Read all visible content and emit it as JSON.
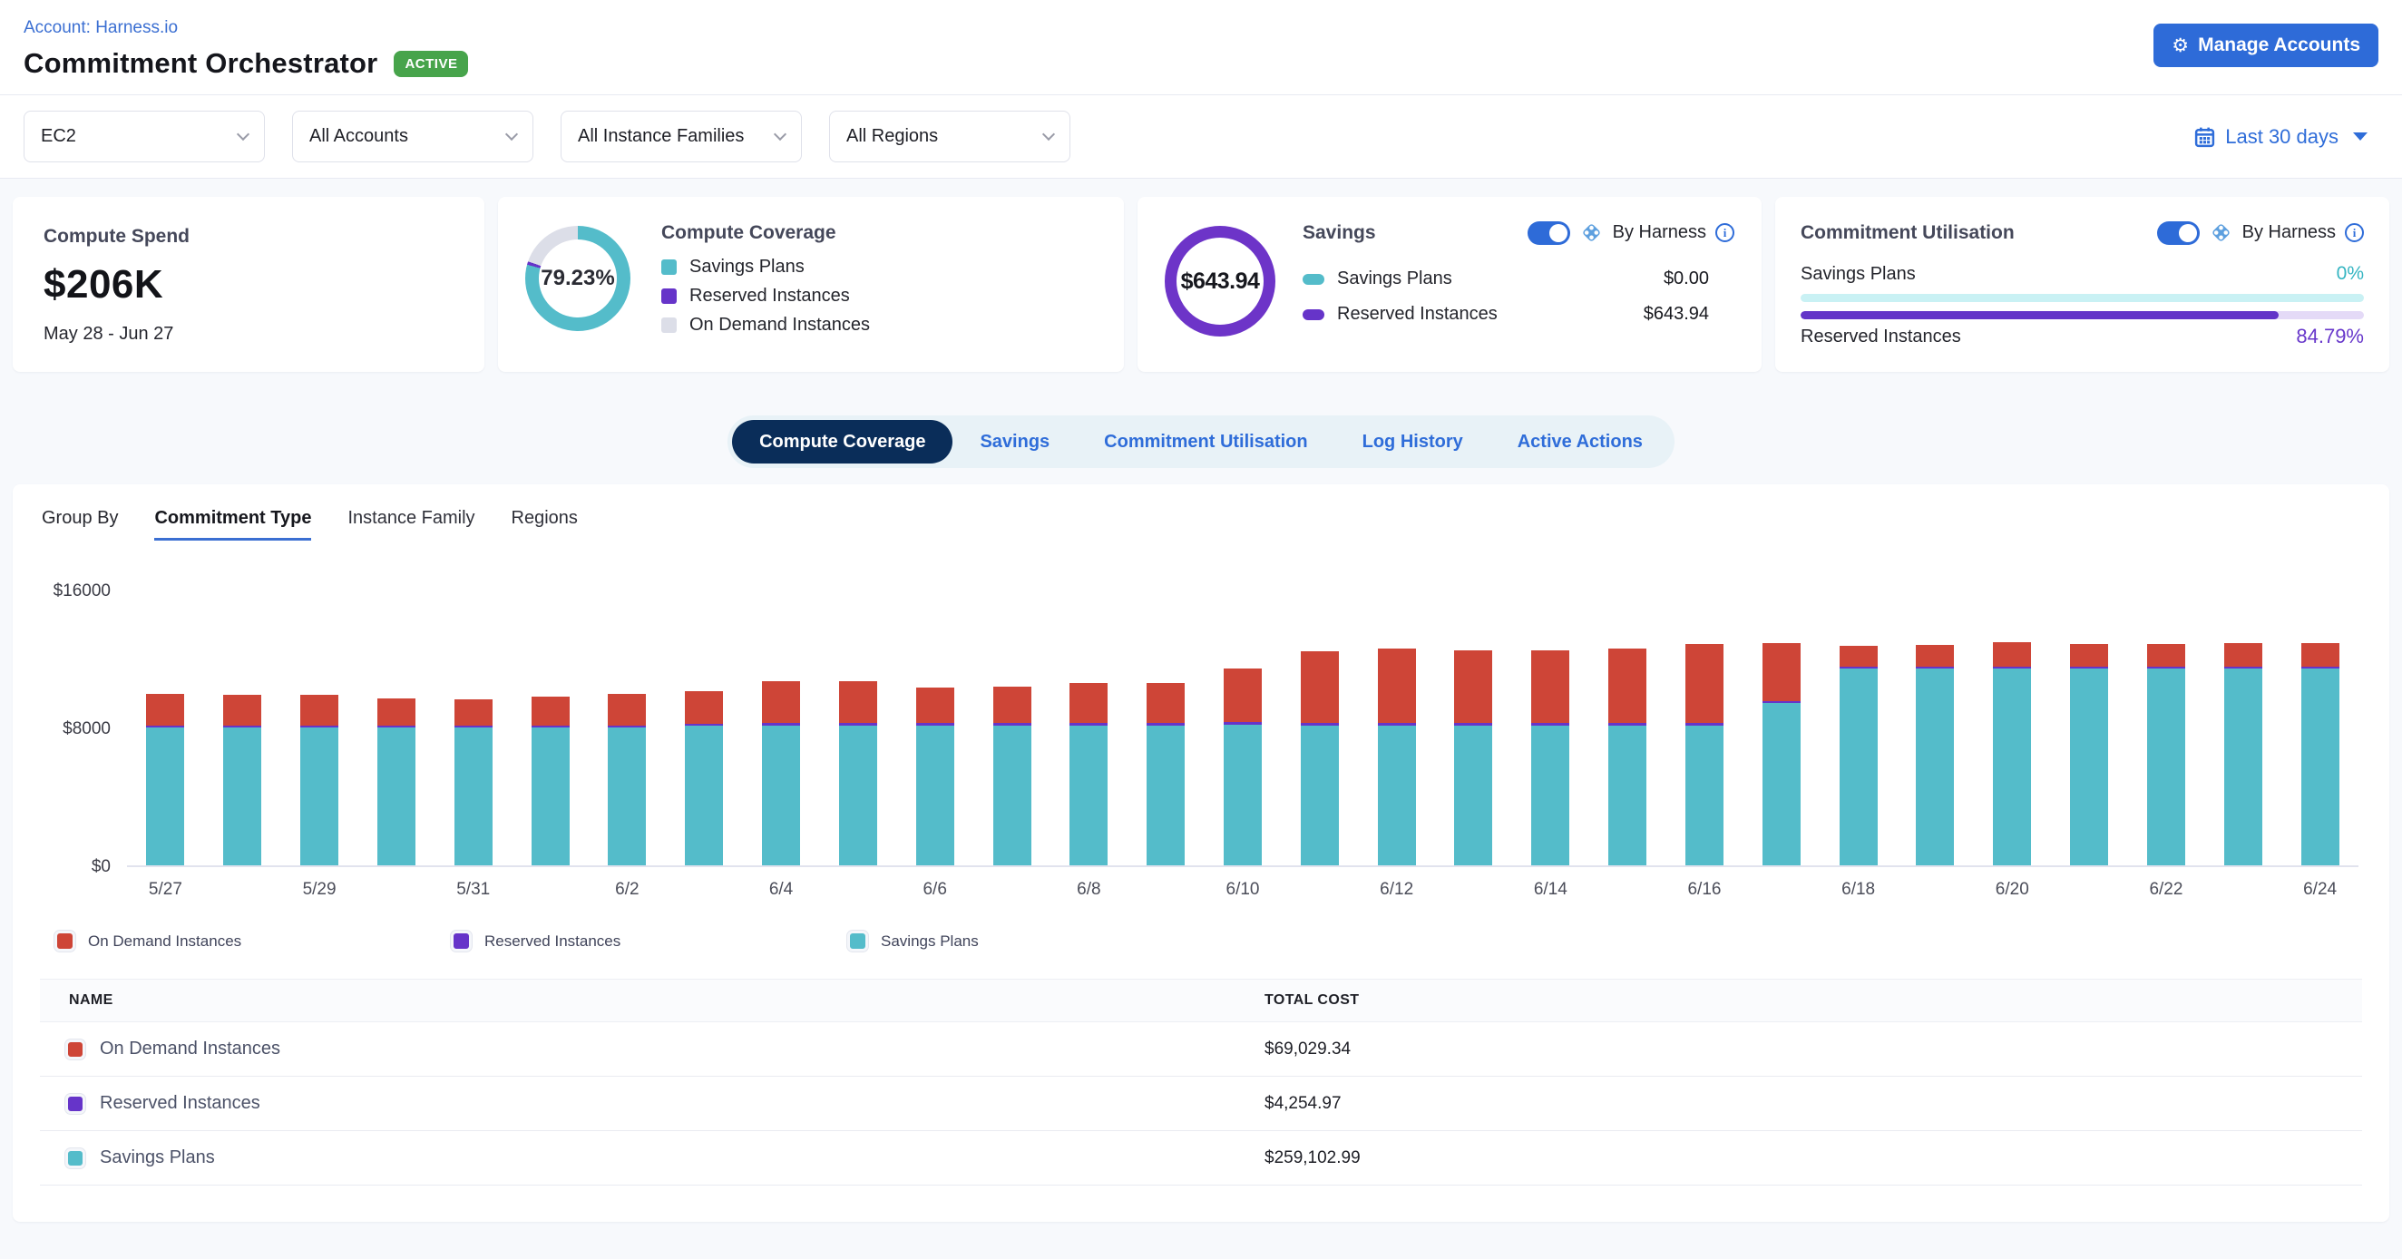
{
  "header": {
    "account_link": "Account: Harness.io",
    "title": "Commitment Orchestrator",
    "status_badge": "ACTIVE",
    "manage_accounts_label": "Manage Accounts"
  },
  "filters": {
    "dropdowns": [
      "EC2",
      "All Accounts",
      "All Instance Families",
      "All Regions"
    ],
    "date_range": "Last 30 days"
  },
  "cards": {
    "compute_spend": {
      "title": "Compute Spend",
      "value": "$206K",
      "date_range": "May 28 - Jun 27"
    },
    "compute_coverage": {
      "title": "Compute Coverage",
      "percent": "79.23%",
      "percent_value": 79.23,
      "legend": [
        {
          "label": "Savings Plans",
          "color": "#54BCCA"
        },
        {
          "label": "Reserved Instances",
          "color": "#6634C9"
        },
        {
          "label": "On Demand Instances",
          "color": "#DCDEE8"
        }
      ]
    },
    "savings": {
      "title": "Savings",
      "total": "$643.94",
      "by_harness_label": "By Harness",
      "rows": [
        {
          "label": "Savings Plans",
          "value": "$0.00",
          "color": "#54BCCA"
        },
        {
          "label": "Reserved Instances",
          "value": "$643.94",
          "color": "#6634C9"
        }
      ]
    },
    "commitment_utilisation": {
      "title": "Commitment Utilisation",
      "by_harness_label": "By Harness",
      "rows": [
        {
          "label": "Savings Plans",
          "percent": "0%",
          "percent_value": 0,
          "fill_color": "#35B5C2",
          "track_color": "#C9F1F4"
        },
        {
          "label": "Reserved Instances",
          "percent": "84.79%",
          "percent_value": 84.79,
          "fill_color": "#6335C8",
          "track_color": "#E4DAF7"
        }
      ]
    }
  },
  "tabs": [
    {
      "label": "Compute Coverage",
      "active": true
    },
    {
      "label": "Savings",
      "active": false
    },
    {
      "label": "Commitment Utilisation",
      "active": false
    },
    {
      "label": "Log History",
      "active": false
    },
    {
      "label": "Active Actions",
      "active": false
    }
  ],
  "group_by": {
    "label": "Group By",
    "options": [
      {
        "label": "Commitment Type",
        "active": true
      },
      {
        "label": "Instance Family",
        "active": false
      },
      {
        "label": "Regions",
        "active": false
      }
    ]
  },
  "chart_data": {
    "type": "bar",
    "stacked": true,
    "x": [
      "5/27",
      "5/28",
      "5/29",
      "5/30",
      "5/31",
      "6/1",
      "6/2",
      "6/3",
      "6/4",
      "6/5",
      "6/6",
      "6/7",
      "6/8",
      "6/9",
      "6/10",
      "6/11",
      "6/12",
      "6/13",
      "6/14",
      "6/15",
      "6/16",
      "6/17",
      "6/18",
      "6/19",
      "6/20",
      "6/21",
      "6/22",
      "6/23",
      "6/24"
    ],
    "x_label_every": 2,
    "series": [
      {
        "name": "Savings Plans",
        "color": "#54BCCA",
        "values": [
          8000,
          8000,
          8000,
          8000,
          8000,
          8000,
          8000,
          8100,
          8100,
          8100,
          8100,
          8100,
          8100,
          8100,
          8150,
          8100,
          8100,
          8100,
          8100,
          8100,
          8100,
          9400,
          11400,
          11400,
          11400,
          11400,
          11400,
          11400,
          11400
        ]
      },
      {
        "name": "Reserved Instances",
        "color": "#6634C9",
        "values": [
          120,
          120,
          120,
          120,
          120,
          120,
          120,
          120,
          150,
          150,
          150,
          150,
          150,
          150,
          150,
          150,
          150,
          150,
          150,
          150,
          150,
          150,
          150,
          150,
          150,
          150,
          150,
          150,
          150
        ]
      },
      {
        "name": "On Demand Instances",
        "color": "#CE4537",
        "values": [
          1830,
          1750,
          1750,
          1580,
          1530,
          1690,
          1820,
          1880,
          2420,
          2420,
          2060,
          2130,
          2340,
          2340,
          3120,
          4170,
          4350,
          4250,
          4250,
          4350,
          4590,
          3340,
          1190,
          1240,
          1400,
          1270,
          1290,
          1340,
          1340
        ]
      }
    ],
    "ylim": [
      0,
      16000
    ],
    "yticks": [
      {
        "label": "$0",
        "value": 0
      },
      {
        "label": "$8000",
        "value": 8000
      },
      {
        "label": "$16000",
        "value": 16000
      }
    ],
    "legend_position": "bottom",
    "grid": false
  },
  "chart_legend": [
    {
      "label": "On Demand Instances",
      "color": "#CE4537"
    },
    {
      "label": "Reserved Instances",
      "color": "#6634C9"
    },
    {
      "label": "Savings Plans",
      "color": "#54BCCA"
    }
  ],
  "table": {
    "columns": [
      "NAME",
      "TOTAL COST"
    ],
    "rows": [
      {
        "name": "On Demand Instances",
        "total_cost": "$69,029.34",
        "color": "#CE4537"
      },
      {
        "name": "Reserved Instances",
        "total_cost": "$4,254.97",
        "color": "#6634C9"
      },
      {
        "name": "Savings Plans",
        "total_cost": "$259,102.99",
        "color": "#54BCCA"
      }
    ]
  },
  "colors": {
    "accent_blue": "#2F6DD9",
    "navy_active_tab": "#0A2D59",
    "badge_green": "#47A44B",
    "coverage_remainder": "#DCDEE8",
    "ring_purple": "#6D34C8"
  }
}
